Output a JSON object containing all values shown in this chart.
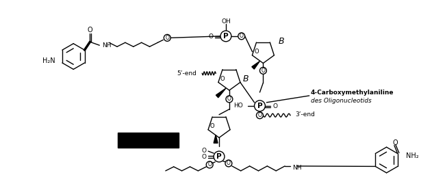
{
  "background_color": "#ffffff",
  "text_color": "#000000",
  "label_5end": "5’-end",
  "label_3end": "3’-end",
  "label_4cma_line1": "4-Carboxymethylaniline",
  "label_4cma_line2": "des Oligonucleotids",
  "figsize": [
    6.5,
    2.75
  ],
  "dpi": 100
}
